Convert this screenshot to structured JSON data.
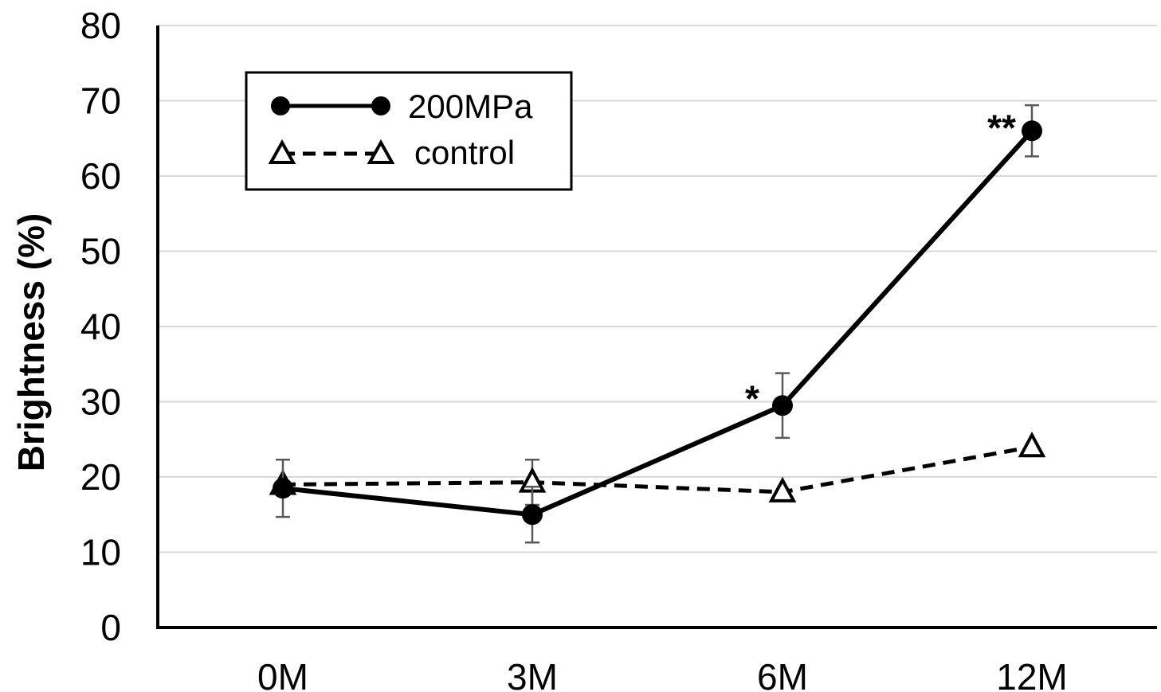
{
  "chart_data": {
    "type": "line",
    "title": "",
    "xlabel": "",
    "ylabel": "Brightness (%)",
    "categories": [
      "0M",
      "3M",
      "6M",
      "12M"
    ],
    "ylim": [
      0,
      80
    ],
    "yticks": [
      0,
      10,
      20,
      30,
      40,
      50,
      60,
      70,
      80
    ],
    "grid": true,
    "legend_position": "top-left",
    "series": [
      {
        "name": "200MPa",
        "values": [
          18.5,
          15.0,
          29.5,
          66.0
        ],
        "error": [
          3.8,
          3.7,
          4.3,
          3.4
        ],
        "marker": "filled-circle",
        "line_style": "solid",
        "color": "#000000"
      },
      {
        "name": "control",
        "values": [
          19.0,
          19.3,
          18.0,
          24.0
        ],
        "error": [
          null,
          3.0,
          null,
          null
        ],
        "marker": "open-triangle",
        "line_style": "dashed",
        "color": "#000000"
      }
    ],
    "annotations": [
      {
        "text": "*",
        "category": "6M",
        "y": 30
      },
      {
        "text": "**",
        "category": "12M",
        "y": 66
      }
    ],
    "colors": {
      "grid": "#d9d9d9",
      "axis": "#000000",
      "error_bar": "#595959"
    }
  }
}
